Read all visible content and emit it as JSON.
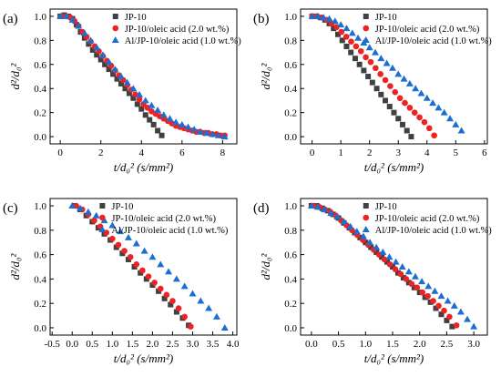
{
  "colors": {
    "JP-10": "#404040",
    "JP-10/oleic acid (2.0 wt.%)": "#ee2222",
    "Al/JP-10/oleic acid (1.0 wt.%)": "#1c6fd1"
  },
  "chart_data": [
    {
      "panel": "(a)",
      "type": "scatter",
      "xlabel": "t/d₀² (s/mm²)",
      "ylabel": "d²/d₀²",
      "xlim": [
        -0.5,
        8.7
      ],
      "ylim": [
        -0.06,
        1.06
      ],
      "xticks": [
        0,
        2,
        4,
        6,
        8
      ],
      "xtick_labels": [
        "0",
        "2",
        "4",
        "6",
        "8"
      ],
      "yticks": [
        0,
        0.2,
        0.4,
        0.6,
        0.8,
        1.0
      ],
      "ytick_labels": [
        "0.0",
        "0.2",
        "0.4",
        "0.6",
        "0.8",
        "1.0"
      ],
      "legend_position": "top-right",
      "series": [
        {
          "name": "JP-10",
          "marker": "square",
          "x": [
            0.0,
            0.2,
            0.4,
            0.6,
            0.8,
            1.0,
            1.2,
            1.4,
            1.6,
            1.8,
            2.0,
            2.2,
            2.4,
            2.6,
            2.8,
            3.0,
            3.2,
            3.4,
            3.6,
            3.8,
            4.0,
            4.2,
            4.4,
            4.6,
            4.8,
            5.0
          ],
          "y": [
            1.0,
            1.01,
            1.0,
            0.98,
            0.93,
            0.87,
            0.82,
            0.77,
            0.72,
            0.68,
            0.64,
            0.6,
            0.56,
            0.52,
            0.48,
            0.44,
            0.4,
            0.36,
            0.32,
            0.27,
            0.23,
            0.18,
            0.14,
            0.1,
            0.05,
            0.01
          ]
        },
        {
          "name": "JP-10/oleic acid (2.0 wt.%)",
          "marker": "circle",
          "x": [
            0.1,
            0.3,
            0.5,
            0.7,
            0.9,
            1.1,
            1.3,
            1.5,
            1.7,
            1.9,
            2.1,
            2.3,
            2.5,
            2.7,
            2.9,
            3.1,
            3.3,
            3.5,
            3.7,
            3.9,
            4.1,
            4.3,
            4.5,
            4.7,
            4.9,
            5.1,
            5.3,
            5.5,
            5.7,
            5.9,
            6.1,
            6.3,
            6.5,
            6.7,
            6.9,
            7.1,
            7.3,
            7.5,
            7.7,
            7.9,
            8.1
          ],
          "y": [
            1.0,
            1.0,
            0.99,
            0.96,
            0.92,
            0.87,
            0.83,
            0.79,
            0.75,
            0.71,
            0.67,
            0.63,
            0.59,
            0.55,
            0.51,
            0.47,
            0.43,
            0.39,
            0.35,
            0.31,
            0.27,
            0.24,
            0.21,
            0.19,
            0.17,
            0.15,
            0.13,
            0.11,
            0.09,
            0.08,
            0.07,
            0.06,
            0.05,
            0.04,
            0.04,
            0.03,
            0.03,
            0.02,
            0.02,
            0.01,
            0.01
          ]
        },
        {
          "name": "Al/JP-10/oleic acid (1.0 wt.%)",
          "marker": "triangle",
          "x": [
            0.0,
            0.3,
            0.6,
            0.9,
            1.2,
            1.5,
            1.8,
            2.1,
            2.4,
            2.7,
            3.0,
            3.3,
            3.6,
            3.9,
            4.2,
            4.5,
            4.8,
            5.1,
            5.4,
            5.7,
            6.0,
            6.3,
            6.6,
            6.9,
            7.2,
            7.5,
            7.8,
            8.1
          ],
          "y": [
            1.0,
            1.0,
            0.97,
            0.92,
            0.86,
            0.8,
            0.74,
            0.68,
            0.62,
            0.56,
            0.5,
            0.45,
            0.4,
            0.35,
            0.3,
            0.26,
            0.22,
            0.18,
            0.15,
            0.12,
            0.1,
            0.08,
            0.06,
            0.04,
            0.03,
            0.02,
            0.01,
            0.0
          ]
        }
      ]
    },
    {
      "panel": "(b)",
      "type": "scatter",
      "xlabel": "t/d₀² (s/mm²)",
      "ylabel": "d²/d₀²",
      "xlim": [
        -0.4,
        6.1
      ],
      "ylim": [
        -0.06,
        1.06
      ],
      "xticks": [
        0,
        1,
        2,
        3,
        4,
        5,
        6
      ],
      "xtick_labels": [
        "0",
        "1",
        "2",
        "3",
        "4",
        "5",
        "6"
      ],
      "yticks": [
        0,
        0.2,
        0.4,
        0.6,
        0.8,
        1.0
      ],
      "ytick_labels": [
        "0.0",
        "0.2",
        "0.4",
        "0.6",
        "0.8",
        "1.0"
      ],
      "legend_position": "top-right",
      "series": [
        {
          "name": "JP-10",
          "marker": "square",
          "x": [
            0.0,
            0.15,
            0.3,
            0.45,
            0.6,
            0.75,
            0.9,
            1.05,
            1.2,
            1.35,
            1.5,
            1.65,
            1.8,
            1.95,
            2.1,
            2.25,
            2.4,
            2.55,
            2.7,
            2.85,
            3.0,
            3.15,
            3.3,
            3.45
          ],
          "y": [
            1.0,
            1.0,
            0.99,
            0.97,
            0.94,
            0.9,
            0.85,
            0.8,
            0.75,
            0.7,
            0.65,
            0.6,
            0.55,
            0.5,
            0.45,
            0.4,
            0.35,
            0.3,
            0.25,
            0.2,
            0.15,
            0.1,
            0.05,
            0.0
          ]
        },
        {
          "name": "JP-10/oleic acid (2.0 wt.%)",
          "marker": "circle",
          "x": [
            0.0,
            0.17,
            0.34,
            0.51,
            0.68,
            0.85,
            1.02,
            1.19,
            1.36,
            1.53,
            1.7,
            1.87,
            2.04,
            2.21,
            2.38,
            2.55,
            2.72,
            2.89,
            3.06,
            3.23,
            3.4,
            3.57,
            3.74,
            3.91,
            4.08,
            4.25
          ],
          "y": [
            1.0,
            1.0,
            0.99,
            0.97,
            0.94,
            0.91,
            0.87,
            0.83,
            0.79,
            0.75,
            0.71,
            0.66,
            0.62,
            0.57,
            0.52,
            0.47,
            0.42,
            0.37,
            0.32,
            0.28,
            0.24,
            0.2,
            0.16,
            0.12,
            0.07,
            0.01
          ]
        },
        {
          "name": "Al/JP-10/oleic acid (1.0 wt.%)",
          "marker": "triangle",
          "x": [
            0.0,
            0.2,
            0.4,
            0.6,
            0.8,
            1.0,
            1.2,
            1.4,
            1.6,
            1.8,
            2.0,
            2.2,
            2.4,
            2.6,
            2.8,
            3.0,
            3.2,
            3.4,
            3.6,
            3.8,
            4.0,
            4.2,
            4.4,
            4.6,
            4.8,
            5.0,
            5.2
          ],
          "y": [
            1.0,
            1.0,
            0.99,
            0.98,
            0.96,
            0.93,
            0.9,
            0.86,
            0.82,
            0.78,
            0.74,
            0.7,
            0.65,
            0.61,
            0.57,
            0.52,
            0.48,
            0.44,
            0.4,
            0.36,
            0.32,
            0.28,
            0.24,
            0.2,
            0.15,
            0.1,
            0.05
          ]
        }
      ]
    },
    {
      "panel": "(c)",
      "type": "scatter",
      "xlabel": "t/d₀² (s/mm²)",
      "ylabel": "d²/d₀²",
      "xlim": [
        -0.55,
        4.1
      ],
      "ylim": [
        -0.06,
        1.06
      ],
      "xticks": [
        -0.5,
        0.0,
        0.5,
        1.0,
        1.5,
        2.0,
        2.5,
        3.0,
        3.5,
        4.0
      ],
      "xtick_labels": [
        "-0.5",
        "0.0",
        "0.5",
        "1.0",
        "1.5",
        "2.0",
        "2.5",
        "3.0",
        "3.5",
        "4.0"
      ],
      "yticks": [
        0,
        0.2,
        0.4,
        0.6,
        0.8,
        1.0
      ],
      "ytick_labels": [
        "0.0",
        "0.2",
        "0.4",
        "0.6",
        "0.8",
        "1.0"
      ],
      "legend_position": "top-right",
      "series": [
        {
          "name": "JP-10",
          "marker": "square",
          "x": [
            0.05,
            0.2,
            0.35,
            0.5,
            0.65,
            0.8,
            0.95,
            1.1,
            1.25,
            1.4,
            1.55,
            1.7,
            1.85,
            2.0,
            2.15,
            2.3,
            2.45,
            2.6,
            2.75,
            2.9
          ],
          "y": [
            1.0,
            0.97,
            0.92,
            0.87,
            0.82,
            0.77,
            0.72,
            0.66,
            0.61,
            0.56,
            0.5,
            0.45,
            0.4,
            0.35,
            0.3,
            0.24,
            0.19,
            0.13,
            0.08,
            0.02
          ]
        },
        {
          "name": "JP-10/oleic acid (2.0 wt.%)",
          "marker": "circle",
          "x": [
            0.1,
            0.25,
            0.4,
            0.55,
            0.7,
            0.85,
            1.0,
            1.15,
            1.3,
            1.45,
            1.6,
            1.75,
            1.9,
            2.05,
            2.2,
            2.35,
            2.5,
            2.65,
            2.8,
            2.95
          ],
          "y": [
            1.0,
            0.97,
            0.93,
            0.88,
            0.83,
            0.78,
            0.73,
            0.68,
            0.63,
            0.58,
            0.52,
            0.47,
            0.42,
            0.37,
            0.32,
            0.27,
            0.22,
            0.16,
            0.09,
            0.01
          ]
        },
        {
          "name": "Al/JP-10/oleic acid (1.0 wt.%)",
          "marker": "triangle",
          "x": [
            0.0,
            0.2,
            0.4,
            0.6,
            0.8,
            1.0,
            1.2,
            1.4,
            1.6,
            1.8,
            2.0,
            2.2,
            2.4,
            2.6,
            2.8,
            3.0,
            3.2,
            3.4,
            3.6,
            3.8
          ],
          "y": [
            1.0,
            0.98,
            0.95,
            0.92,
            0.88,
            0.84,
            0.79,
            0.74,
            0.69,
            0.63,
            0.58,
            0.52,
            0.46,
            0.4,
            0.34,
            0.28,
            0.22,
            0.16,
            0.09,
            0.0
          ]
        }
      ]
    },
    {
      "panel": "(d)",
      "type": "scatter",
      "xlabel": "t/d₀² (s/mm²)",
      "ylabel": "d²/d₀²",
      "xlim": [
        -0.2,
        3.25
      ],
      "ylim": [
        -0.06,
        1.06
      ],
      "xticks": [
        0.0,
        0.5,
        1.0,
        1.5,
        2.0,
        2.5,
        3.0
      ],
      "xtick_labels": [
        "0.0",
        "0.5",
        "1.0",
        "1.5",
        "2.0",
        "2.5",
        "3.0"
      ],
      "yticks": [
        0,
        0.2,
        0.4,
        0.6,
        0.8,
        1.0
      ],
      "ytick_labels": [
        "0.0",
        "0.2",
        "0.4",
        "0.6",
        "0.8",
        "1.0"
      ],
      "legend_position": "top-right",
      "series": [
        {
          "name": "JP-10",
          "marker": "square",
          "x": [
            0.0,
            0.1,
            0.2,
            0.3,
            0.4,
            0.5,
            0.6,
            0.7,
            0.8,
            0.9,
            1.0,
            1.1,
            1.2,
            1.3,
            1.4,
            1.5,
            1.6,
            1.7,
            1.8,
            1.9,
            2.0,
            2.1,
            2.2,
            2.3,
            2.4,
            2.5,
            2.6
          ],
          "y": [
            1.0,
            1.0,
            0.98,
            0.96,
            0.93,
            0.9,
            0.86,
            0.82,
            0.78,
            0.74,
            0.7,
            0.66,
            0.62,
            0.58,
            0.54,
            0.5,
            0.45,
            0.41,
            0.37,
            0.33,
            0.29,
            0.25,
            0.21,
            0.16,
            0.11,
            0.06,
            0.01
          ]
        },
        {
          "name": "JP-10/oleic acid (2.0 wt.%)",
          "marker": "circle",
          "x": [
            0.05,
            0.15,
            0.25,
            0.35,
            0.45,
            0.55,
            0.65,
            0.75,
            0.85,
            0.95,
            1.05,
            1.15,
            1.25,
            1.35,
            1.45,
            1.55,
            1.65,
            1.75,
            1.85,
            1.95,
            2.05,
            2.15,
            2.25,
            2.35,
            2.45,
            2.55,
            2.68
          ],
          "y": [
            1.0,
            0.99,
            0.97,
            0.95,
            0.92,
            0.88,
            0.84,
            0.8,
            0.76,
            0.72,
            0.68,
            0.64,
            0.6,
            0.56,
            0.52,
            0.48,
            0.44,
            0.4,
            0.36,
            0.33,
            0.29,
            0.26,
            0.22,
            0.18,
            0.14,
            0.09,
            0.02
          ]
        },
        {
          "name": "Al/JP-10/oleic acid (1.0 wt.%)",
          "marker": "triangle",
          "x": [
            0.0,
            0.12,
            0.24,
            0.36,
            0.48,
            0.6,
            0.72,
            0.84,
            0.96,
            1.08,
            1.2,
            1.32,
            1.44,
            1.56,
            1.68,
            1.8,
            1.92,
            2.04,
            2.16,
            2.28,
            2.4,
            2.52,
            2.64,
            2.76,
            2.88,
            3.0
          ],
          "y": [
            1.0,
            0.99,
            0.97,
            0.94,
            0.91,
            0.87,
            0.83,
            0.79,
            0.75,
            0.7,
            0.66,
            0.62,
            0.58,
            0.54,
            0.5,
            0.46,
            0.42,
            0.38,
            0.34,
            0.3,
            0.26,
            0.22,
            0.18,
            0.13,
            0.07,
            0.01
          ]
        }
      ]
    }
  ]
}
